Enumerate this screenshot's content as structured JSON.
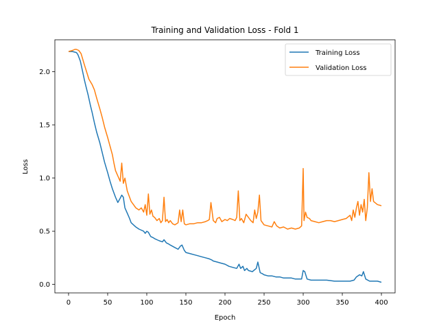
{
  "chart_data": {
    "type": "line",
    "title": "Training and Validation Loss - Fold 1",
    "xlabel": "Epoch",
    "ylabel": "Loss",
    "xlim": [
      -17.5,
      417.5
    ],
    "ylim": [
      -0.08,
      2.3
    ],
    "xticks": [
      0,
      50,
      100,
      150,
      200,
      250,
      300,
      350,
      400
    ],
    "yticks": [
      0.0,
      0.5,
      1.0,
      1.5,
      2.0
    ],
    "grid": false,
    "legend_position": "top-right",
    "series": [
      {
        "name": "Training Loss",
        "color": "#1f77b4",
        "x": [
          0,
          5,
          10,
          12,
          15,
          18,
          20,
          22,
          25,
          28,
          30,
          33,
          36,
          40,
          43,
          46,
          50,
          53,
          56,
          60,
          63,
          66,
          68,
          70,
          72,
          75,
          78,
          80,
          83,
          86,
          90,
          93,
          96,
          98,
          100,
          102,
          105,
          108,
          110,
          113,
          116,
          120,
          122,
          125,
          128,
          130,
          135,
          140,
          143,
          145,
          148,
          150,
          155,
          160,
          165,
          170,
          175,
          180,
          183,
          185,
          190,
          195,
          200,
          205,
          210,
          215,
          218,
          220,
          223,
          225,
          228,
          230,
          235,
          240,
          242,
          245,
          248,
          250,
          255,
          260,
          265,
          270,
          275,
          280,
          285,
          290,
          295,
          298,
          300,
          302,
          305,
          310,
          315,
          320,
          330,
          340,
          350,
          360,
          365,
          368,
          372,
          375,
          377,
          380,
          385,
          390,
          395,
          400
        ],
        "y": [
          2.19,
          2.19,
          2.18,
          2.16,
          2.1,
          2.0,
          1.93,
          1.87,
          1.78,
          1.68,
          1.62,
          1.52,
          1.43,
          1.33,
          1.24,
          1.15,
          1.05,
          0.97,
          0.9,
          0.82,
          0.77,
          0.81,
          0.84,
          0.82,
          0.72,
          0.67,
          0.62,
          0.58,
          0.56,
          0.54,
          0.52,
          0.51,
          0.5,
          0.48,
          0.5,
          0.49,
          0.45,
          0.44,
          0.43,
          0.42,
          0.41,
          0.4,
          0.42,
          0.39,
          0.38,
          0.37,
          0.35,
          0.33,
          0.36,
          0.37,
          0.32,
          0.3,
          0.29,
          0.28,
          0.27,
          0.26,
          0.25,
          0.24,
          0.23,
          0.22,
          0.21,
          0.2,
          0.19,
          0.17,
          0.16,
          0.15,
          0.19,
          0.15,
          0.17,
          0.13,
          0.15,
          0.13,
          0.12,
          0.15,
          0.21,
          0.11,
          0.1,
          0.09,
          0.08,
          0.08,
          0.07,
          0.07,
          0.06,
          0.06,
          0.06,
          0.05,
          0.05,
          0.05,
          0.13,
          0.12,
          0.05,
          0.04,
          0.04,
          0.04,
          0.04,
          0.03,
          0.03,
          0.03,
          0.04,
          0.07,
          0.09,
          0.08,
          0.12,
          0.05,
          0.03,
          0.03,
          0.03,
          0.02
        ]
      },
      {
        "name": "Validation Loss",
        "color": "#ff7f0e",
        "x": [
          0,
          5,
          8,
          10,
          13,
          16,
          18,
          20,
          23,
          26,
          30,
          33,
          36,
          40,
          43,
          46,
          50,
          53,
          56,
          58,
          60,
          63,
          66,
          68,
          70,
          72,
          75,
          78,
          80,
          83,
          86,
          90,
          93,
          96,
          98,
          100,
          102,
          104,
          106,
          108,
          110,
          113,
          116,
          118,
          120,
          122,
          124,
          126,
          128,
          130,
          133,
          136,
          140,
          142,
          144,
          146,
          148,
          150,
          155,
          160,
          165,
          170,
          175,
          178,
          180,
          182,
          185,
          188,
          190,
          193,
          196,
          200,
          203,
          206,
          210,
          213,
          215,
          217,
          219,
          221,
          224,
          227,
          230,
          233,
          236,
          238,
          240,
          242,
          244,
          246,
          250,
          255,
          260,
          263,
          266,
          270,
          275,
          280,
          285,
          290,
          295,
          298,
          300,
          301,
          303,
          305,
          308,
          310,
          315,
          320,
          325,
          330,
          335,
          340,
          345,
          350,
          355,
          360,
          362,
          364,
          366,
          368,
          370,
          372,
          374,
          376,
          378,
          380,
          382,
          384,
          386,
          388,
          390,
          395,
          400
        ],
        "y": [
          2.19,
          2.2,
          2.21,
          2.21,
          2.2,
          2.17,
          2.12,
          2.07,
          2.0,
          1.93,
          1.88,
          1.83,
          1.75,
          1.65,
          1.57,
          1.48,
          1.38,
          1.3,
          1.22,
          1.14,
          1.07,
          1.02,
          0.97,
          1.14,
          0.95,
          1.0,
          0.88,
          0.82,
          0.78,
          0.75,
          0.72,
          0.7,
          0.72,
          0.68,
          0.75,
          0.65,
          0.85,
          0.66,
          0.7,
          0.64,
          0.63,
          0.6,
          0.62,
          0.58,
          0.6,
          0.82,
          0.59,
          0.61,
          0.58,
          0.6,
          0.57,
          0.56,
          0.58,
          0.7,
          0.59,
          0.7,
          0.57,
          0.56,
          0.57,
          0.57,
          0.58,
          0.58,
          0.59,
          0.6,
          0.61,
          0.77,
          0.6,
          0.58,
          0.62,
          0.63,
          0.59,
          0.61,
          0.6,
          0.62,
          0.61,
          0.6,
          0.63,
          0.88,
          0.6,
          0.62,
          0.58,
          0.66,
          0.63,
          0.6,
          0.58,
          0.7,
          0.62,
          0.68,
          0.84,
          0.6,
          0.56,
          0.55,
          0.54,
          0.59,
          0.55,
          0.53,
          0.54,
          0.52,
          0.53,
          0.52,
          0.53,
          0.55,
          1.09,
          0.6,
          0.68,
          0.63,
          0.62,
          0.6,
          0.59,
          0.58,
          0.59,
          0.6,
          0.6,
          0.59,
          0.6,
          0.61,
          0.62,
          0.65,
          0.6,
          0.7,
          0.63,
          0.72,
          0.78,
          0.65,
          0.75,
          0.68,
          0.8,
          0.6,
          0.72,
          1.05,
          0.78,
          0.9,
          0.78,
          0.75,
          0.74
        ]
      }
    ]
  }
}
